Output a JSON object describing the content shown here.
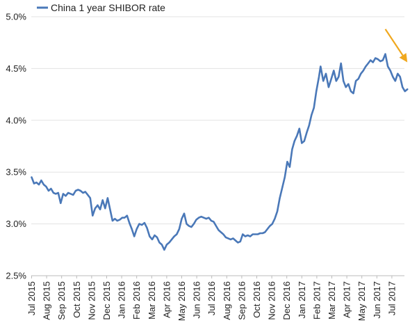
{
  "chart_data": {
    "type": "line",
    "title": "",
    "xlabel": "",
    "ylabel": "",
    "ylim": [
      2.5,
      5.0
    ],
    "y_ticks": [
      "2.5%",
      "3.0%",
      "3.5%",
      "4.0%",
      "4.5%",
      "5.0%"
    ],
    "x_ticks": [
      "Jul 2015",
      "Aug 2015",
      "Sep 2015",
      "Oct 2015",
      "Nov 2015",
      "Dec 2015",
      "Jan 2016",
      "Feb 2016",
      "Mar 2016",
      "Apr 2016",
      "May 2016",
      "Jun 2016",
      "Jul 2016",
      "Aug 2016",
      "Sep 2016",
      "Oct 2016",
      "Nov 2016",
      "Dec 2016",
      "Jan 2017",
      "Feb 2017",
      "Mar 2017",
      "Apr 2017",
      "May 2017",
      "Jun 2017",
      "Jul 2017"
    ],
    "grid": "horizontal",
    "legend_position": "top-left",
    "series": [
      {
        "name": "China 1 year SHIBOR rate",
        "color": "#4a78b8",
        "points": [
          [
            "2015-07-01",
            3.45
          ],
          [
            "2015-07-06",
            3.39
          ],
          [
            "2015-07-11",
            3.4
          ],
          [
            "2015-07-16",
            3.38
          ],
          [
            "2015-07-21",
            3.42
          ],
          [
            "2015-07-26",
            3.38
          ],
          [
            "2015-07-31",
            3.36
          ],
          [
            "2015-08-05",
            3.32
          ],
          [
            "2015-08-10",
            3.34
          ],
          [
            "2015-08-15",
            3.3
          ],
          [
            "2015-08-20",
            3.29
          ],
          [
            "2015-08-25",
            3.3
          ],
          [
            "2015-08-30",
            3.2
          ],
          [
            "2015-09-04",
            3.29
          ],
          [
            "2015-09-09",
            3.27
          ],
          [
            "2015-09-14",
            3.3
          ],
          [
            "2015-09-19",
            3.29
          ],
          [
            "2015-09-24",
            3.28
          ],
          [
            "2015-09-29",
            3.32
          ],
          [
            "2015-10-04",
            3.33
          ],
          [
            "2015-10-09",
            3.32
          ],
          [
            "2015-10-14",
            3.3
          ],
          [
            "2015-10-19",
            3.31
          ],
          [
            "2015-10-24",
            3.28
          ],
          [
            "2015-10-29",
            3.25
          ],
          [
            "2015-11-03",
            3.08
          ],
          [
            "2015-11-08",
            3.15
          ],
          [
            "2015-11-13",
            3.18
          ],
          [
            "2015-11-18",
            3.14
          ],
          [
            "2015-11-23",
            3.23
          ],
          [
            "2015-11-28",
            3.15
          ],
          [
            "2015-12-03",
            3.25
          ],
          [
            "2015-12-08",
            3.14
          ],
          [
            "2015-12-13",
            3.03
          ],
          [
            "2015-12-18",
            3.05
          ],
          [
            "2015-12-23",
            3.03
          ],
          [
            "2015-12-28",
            3.04
          ],
          [
            "2016-01-02",
            3.06
          ],
          [
            "2016-01-07",
            3.06
          ],
          [
            "2016-01-12",
            3.08
          ],
          [
            "2016-01-17",
            3.01
          ],
          [
            "2016-01-22",
            2.95
          ],
          [
            "2016-01-27",
            2.88
          ],
          [
            "2016-02-01",
            2.95
          ],
          [
            "2016-02-06",
            3.0
          ],
          [
            "2016-02-11",
            2.99
          ],
          [
            "2016-02-16",
            3.01
          ],
          [
            "2016-02-21",
            2.96
          ],
          [
            "2016-02-26",
            2.88
          ],
          [
            "2016-03-02",
            2.85
          ],
          [
            "2016-03-07",
            2.89
          ],
          [
            "2016-03-12",
            2.87
          ],
          [
            "2016-03-17",
            2.82
          ],
          [
            "2016-03-22",
            2.8
          ],
          [
            "2016-03-27",
            2.75
          ],
          [
            "2016-04-01",
            2.8
          ],
          [
            "2016-04-06",
            2.82
          ],
          [
            "2016-04-11",
            2.85
          ],
          [
            "2016-04-16",
            2.88
          ],
          [
            "2016-04-21",
            2.9
          ],
          [
            "2016-04-26",
            2.95
          ],
          [
            "2016-05-01",
            3.05
          ],
          [
            "2016-05-06",
            3.1
          ],
          [
            "2016-05-11",
            3.0
          ],
          [
            "2016-05-16",
            2.98
          ],
          [
            "2016-05-21",
            2.97
          ],
          [
            "2016-05-26",
            3.0
          ],
          [
            "2016-05-31",
            3.04
          ],
          [
            "2016-06-05",
            3.06
          ],
          [
            "2016-06-10",
            3.07
          ],
          [
            "2016-06-15",
            3.06
          ],
          [
            "2016-06-20",
            3.05
          ],
          [
            "2016-06-25",
            3.06
          ],
          [
            "2016-06-30",
            3.03
          ],
          [
            "2016-07-05",
            3.02
          ],
          [
            "2016-07-10",
            2.98
          ],
          [
            "2016-07-15",
            2.94
          ],
          [
            "2016-07-20",
            2.92
          ],
          [
            "2016-07-25",
            2.9
          ],
          [
            "2016-07-30",
            2.87
          ],
          [
            "2016-08-04",
            2.86
          ],
          [
            "2016-08-09",
            2.85
          ],
          [
            "2016-08-14",
            2.86
          ],
          [
            "2016-08-19",
            2.84
          ],
          [
            "2016-08-24",
            2.82
          ],
          [
            "2016-08-29",
            2.83
          ],
          [
            "2016-09-03",
            2.9
          ],
          [
            "2016-09-08",
            2.88
          ],
          [
            "2016-09-13",
            2.89
          ],
          [
            "2016-09-18",
            2.88
          ],
          [
            "2016-09-23",
            2.9
          ],
          [
            "2016-09-28",
            2.9
          ],
          [
            "2016-10-03",
            2.9
          ],
          [
            "2016-10-08",
            2.91
          ],
          [
            "2016-10-13",
            2.91
          ],
          [
            "2016-10-18",
            2.92
          ],
          [
            "2016-10-23",
            2.95
          ],
          [
            "2016-10-28",
            2.98
          ],
          [
            "2016-11-02",
            3.0
          ],
          [
            "2016-11-07",
            3.05
          ],
          [
            "2016-11-12",
            3.12
          ],
          [
            "2016-11-17",
            3.25
          ],
          [
            "2016-11-22",
            3.35
          ],
          [
            "2016-11-27",
            3.45
          ],
          [
            "2016-12-02",
            3.6
          ],
          [
            "2016-12-07",
            3.55
          ],
          [
            "2016-12-12",
            3.72
          ],
          [
            "2016-12-17",
            3.8
          ],
          [
            "2016-12-22",
            3.85
          ],
          [
            "2016-12-27",
            3.92
          ],
          [
            "2017-01-01",
            3.78
          ],
          [
            "2017-01-06",
            3.8
          ],
          [
            "2017-01-11",
            3.88
          ],
          [
            "2017-01-16",
            3.95
          ],
          [
            "2017-01-21",
            4.05
          ],
          [
            "2017-01-26",
            4.12
          ],
          [
            "2017-01-31",
            4.28
          ],
          [
            "2017-02-05",
            4.42
          ],
          [
            "2017-02-08",
            4.52
          ],
          [
            "2017-02-13",
            4.38
          ],
          [
            "2017-02-18",
            4.45
          ],
          [
            "2017-02-23",
            4.32
          ],
          [
            "2017-02-28",
            4.4
          ],
          [
            "2017-03-05",
            4.48
          ],
          [
            "2017-03-10",
            4.38
          ],
          [
            "2017-03-15",
            4.42
          ],
          [
            "2017-03-20",
            4.55
          ],
          [
            "2017-03-25",
            4.38
          ],
          [
            "2017-03-30",
            4.32
          ],
          [
            "2017-04-04",
            4.35
          ],
          [
            "2017-04-09",
            4.28
          ],
          [
            "2017-04-14",
            4.26
          ],
          [
            "2017-04-19",
            4.38
          ],
          [
            "2017-04-24",
            4.4
          ],
          [
            "2017-04-29",
            4.45
          ],
          [
            "2017-05-04",
            4.48
          ],
          [
            "2017-05-09",
            4.52
          ],
          [
            "2017-05-14",
            4.55
          ],
          [
            "2017-05-19",
            4.58
          ],
          [
            "2017-05-24",
            4.56
          ],
          [
            "2017-05-29",
            4.6
          ],
          [
            "2017-06-03",
            4.59
          ],
          [
            "2017-06-08",
            4.57
          ],
          [
            "2017-06-13",
            4.58
          ],
          [
            "2017-06-18",
            4.64
          ],
          [
            "2017-06-23",
            4.52
          ],
          [
            "2017-06-28",
            4.48
          ],
          [
            "2017-07-03",
            4.42
          ],
          [
            "2017-07-08",
            4.38
          ],
          [
            "2017-07-13",
            4.45
          ],
          [
            "2017-07-18",
            4.42
          ],
          [
            "2017-07-23",
            4.32
          ],
          [
            "2017-07-28",
            4.28
          ],
          [
            "2017-08-02",
            4.3
          ]
        ]
      }
    ],
    "annotations": [
      {
        "type": "arrow",
        "color": "#f0a81e",
        "from": [
          "2017-06-18",
          4.88
        ],
        "to": [
          "2017-08-02",
          4.56
        ]
      }
    ]
  }
}
